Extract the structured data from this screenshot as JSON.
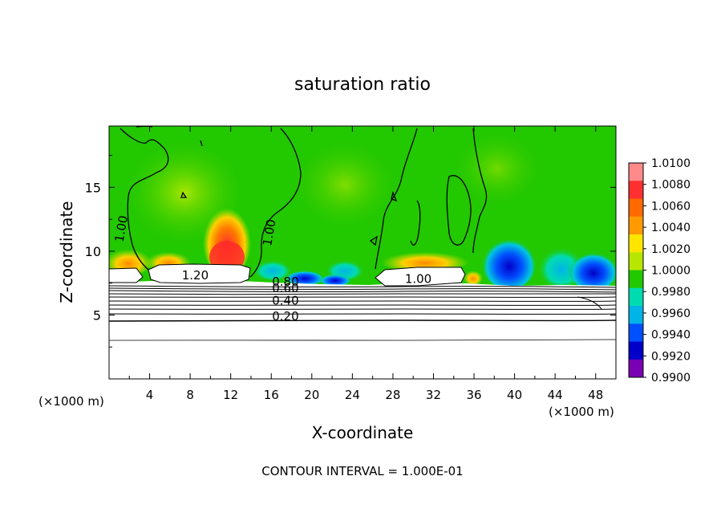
{
  "chart_data": {
    "type": "heatmap",
    "title": "saturation ratio",
    "xlabel": "X-coordinate",
    "ylabel": "Z-coordinate",
    "x_unit": "(×1000 m)",
    "x_unit_right": "(×1000 m)",
    "footer": "CONTOUR INTERVAL = 1.000E-01",
    "xlim": [
      0,
      50
    ],
    "ylim": [
      0,
      19.8
    ],
    "x_ticks": [
      4,
      8,
      12,
      16,
      20,
      24,
      28,
      32,
      36,
      40,
      44,
      48
    ],
    "x_tick_labels": [
      "4",
      "8",
      "12",
      "16",
      "20",
      "24",
      "28",
      "32",
      "36",
      "40",
      "44",
      "48"
    ],
    "y_ticks": [
      5,
      10,
      15
    ],
    "y_tick_labels": [
      "5",
      "10",
      "15"
    ],
    "colorbar": {
      "range": [
        0.99,
        1.01
      ],
      "labels": [
        "1.0100",
        "1.0080",
        "1.0060",
        "1.0040",
        "1.0020",
        "1.0000",
        "0.9980",
        "0.9960",
        "0.9940",
        "0.9920",
        "0.9900"
      ],
      "colors": [
        "#ff8a8a",
        "#ff3030",
        "#ff6a00",
        "#ff9a00",
        "#ffe600",
        "#b8e600",
        "#22c800",
        "#00dcb0",
        "#00b4e6",
        "#0050ff",
        "#0000c8",
        "#7a00b4"
      ]
    },
    "contour_labels": [
      {
        "text": "1.00",
        "x": 1.6,
        "z": 11.7
      },
      {
        "text": "1.00",
        "x": 16.2,
        "z": 11.4
      },
      {
        "text": "1.00",
        "x": 30.5,
        "z": 7.5
      },
      {
        "text": "1.20",
        "x": 8.5,
        "z": 7.8
      },
      {
        "text": "0.80",
        "x": 17.4,
        "z": 7.3
      },
      {
        "text": "0.60",
        "x": 17.4,
        "z": 6.8
      },
      {
        "text": "0.40",
        "x": 17.4,
        "z": 5.8
      },
      {
        "text": "0.20",
        "x": 17.4,
        "z": 4.6
      }
    ]
  }
}
